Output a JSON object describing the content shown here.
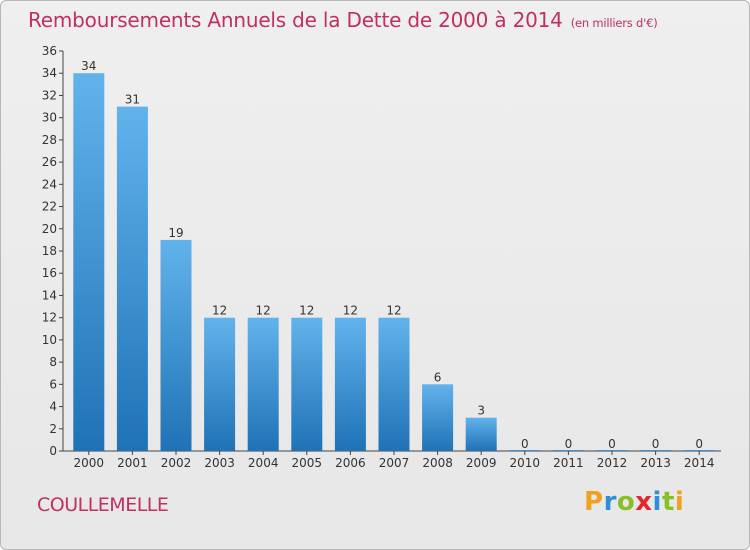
{
  "title": "Remboursements Annuels de la Dette de 2000 à 2014",
  "subtitle": "(en milliers d'€)",
  "commune": "COULLEMELLE",
  "brand": {
    "letters": [
      "P",
      "r",
      "o",
      "x",
      "i",
      "t",
      "i"
    ],
    "colors": [
      "#f0a21c",
      "#2d8fd5",
      "#8bbf2a",
      "#e3262b",
      "#2d8fd5",
      "#8bbf2a",
      "#f0a21c"
    ]
  },
  "colors": {
    "bar_light": "#62b3ec",
    "bar_dark": "#1f72b5",
    "title": "#c2305e"
  },
  "chart_data": {
    "type": "bar",
    "categories": [
      "2000",
      "2001",
      "2002",
      "2003",
      "2004",
      "2005",
      "2006",
      "2007",
      "2008",
      "2009",
      "2010",
      "2011",
      "2012",
      "2013",
      "2014"
    ],
    "values": [
      34,
      31,
      19,
      12,
      12,
      12,
      12,
      12,
      6,
      3,
      0,
      0,
      0,
      0,
      0
    ],
    "title": "Remboursements Annuels de la Dette de 2000 à 2014",
    "subtitle": "(en milliers d'€)",
    "xlabel": "",
    "ylabel": "",
    "ylim": [
      0,
      36
    ],
    "yticks": [
      0,
      2,
      4,
      6,
      8,
      10,
      12,
      14,
      16,
      18,
      20,
      22,
      24,
      26,
      28,
      30,
      32,
      34,
      36
    ],
    "grid": false,
    "data_labels": true
  }
}
